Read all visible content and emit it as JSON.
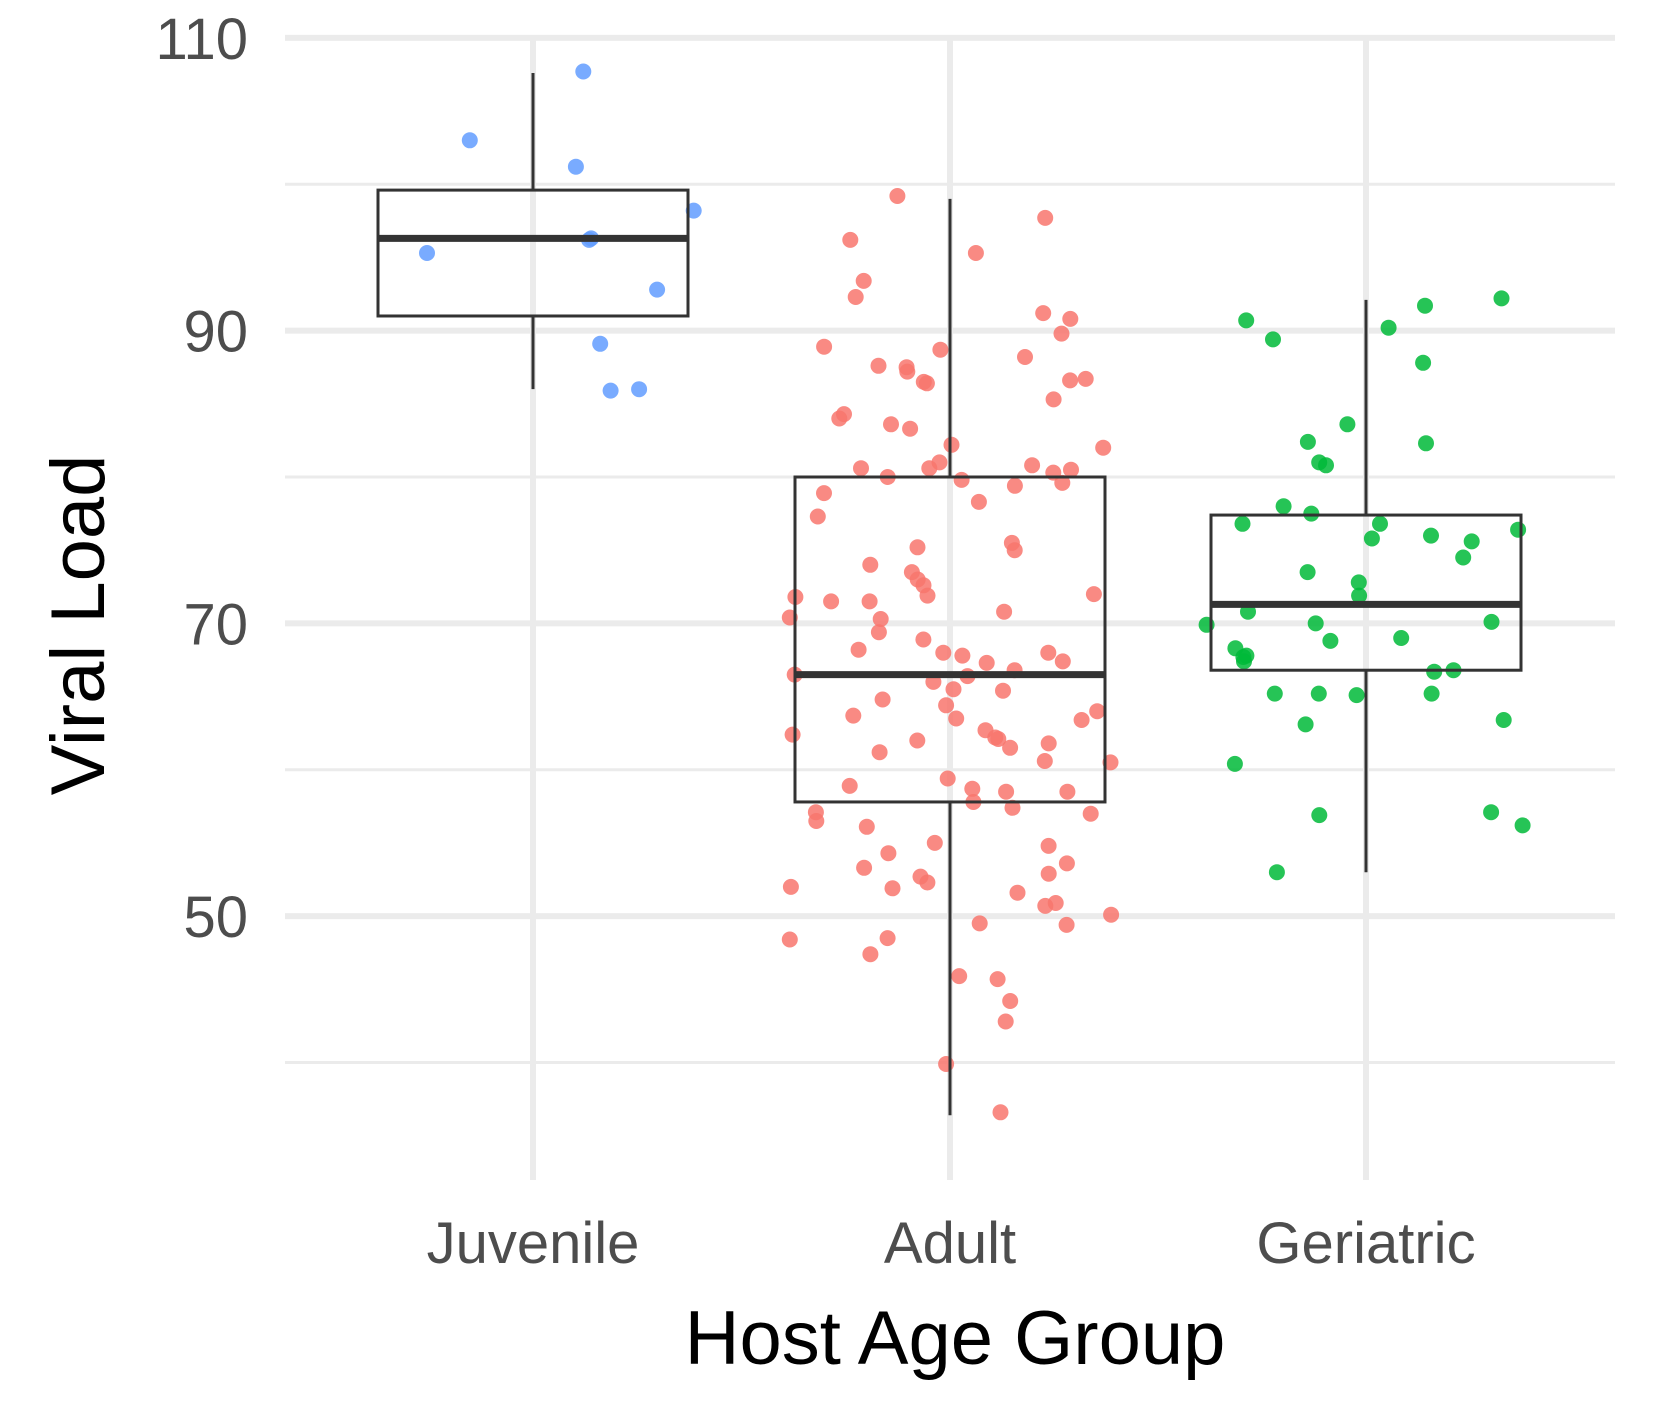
{
  "chart_data": {
    "type": "boxplot",
    "title": "",
    "xlabel": "Host Age Group",
    "ylabel": "Viral Load",
    "categories": [
      "Juvenile",
      "Adult",
      "Geriatric"
    ],
    "y_ticks": [
      50,
      70,
      90,
      110
    ],
    "ylim": [
      33.5,
      110.5
    ],
    "grid": true,
    "legend": "none",
    "colors": {
      "Juvenile": "#619CFF",
      "Adult": "#F8766D",
      "Geriatric": "#00BA38",
      "box": "#333333",
      "grid": "#ebebeb"
    },
    "boxes": [
      {
        "group": "Juvenile",
        "whisker_low": 86.0,
        "q1": 91.0,
        "median": 96.3,
        "q3": 99.6,
        "whisker_high": 107.6
      },
      {
        "group": "Adult",
        "whisker_low": 36.4,
        "q1": 57.8,
        "median": 66.5,
        "q3": 80.0,
        "whisker_high": 99.0
      },
      {
        "group": "Geriatric",
        "whisker_low": 53.0,
        "q1": 66.8,
        "median": 71.3,
        "q3": 77.4,
        "whisker_high": 92.1
      }
    ],
    "points": [
      {
        "group": "Juvenile",
        "values": [
          107.7,
          103.0,
          101.2,
          98.2,
          96.3,
          96.2,
          95.3,
          92.8,
          89.1,
          86.0,
          85.9
        ]
      },
      {
        "group": "Adult",
        "values": [
          99.2,
          97.7,
          96.2,
          95.3,
          93.4,
          92.3,
          91.2,
          90.8,
          89.8,
          88.9,
          88.7,
          88.2,
          87.5,
          87.6,
          87.2,
          86.7,
          86.6,
          86.5,
          86.4,
          85.3,
          84.3,
          84.0,
          83.6,
          83.3,
          82.2,
          82.0,
          81.0,
          80.8,
          80.6,
          80.6,
          80.5,
          80.3,
          80.0,
          79.8,
          79.6,
          79.4,
          78.9,
          78.3,
          77.3,
          75.5,
          75.2,
          75.0,
          74.0,
          73.5,
          73.0,
          72.6,
          72.0,
          71.9,
          71.8,
          71.5,
          71.5,
          70.8,
          70.4,
          70.3,
          69.4,
          68.9,
          68.2,
          68.0,
          68.0,
          67.8,
          67.4,
          67.3,
          66.8,
          66.5,
          66.4,
          66.0,
          65.5,
          65.4,
          64.8,
          64.4,
          64.0,
          63.7,
          63.5,
          63.4,
          62.7,
          62.4,
          62.2,
          62.1,
          62.0,
          61.8,
          61.5,
          61.2,
          60.6,
          60.5,
          59.4,
          58.9,
          58.7,
          58.5,
          58.5,
          57.8,
          57.4,
          57.1,
          57.0,
          56.5,
          56.1,
          55.0,
          54.8,
          54.3,
          53.6,
          53.3,
          52.9,
          52.7,
          52.3,
          52.0,
          51.9,
          51.6,
          50.9,
          50.7,
          50.1,
          49.5,
          49.4,
          48.5,
          48.4,
          47.4,
          45.9,
          45.7,
          44.2,
          42.8,
          39.9,
          36.6
        ]
      },
      {
        "group": "Geriatric",
        "values": [
          92.2,
          91.7,
          90.7,
          90.2,
          89.4,
          87.8,
          83.6,
          82.4,
          82.3,
          81.0,
          80.8,
          78.0,
          77.5,
          76.8,
          76.8,
          76.4,
          76.0,
          75.8,
          75.6,
          74.5,
          73.5,
          72.8,
          71.9,
          70.8,
          70.1,
          70.0,
          69.9,
          69.0,
          68.8,
          68.3,
          67.8,
          67.7,
          67.4,
          66.8,
          66.7,
          65.2,
          65.2,
          65.2,
          65.1,
          63.4,
          63.1,
          60.4,
          57.1,
          56.9,
          56.2,
          53.0
        ]
      }
    ]
  }
}
